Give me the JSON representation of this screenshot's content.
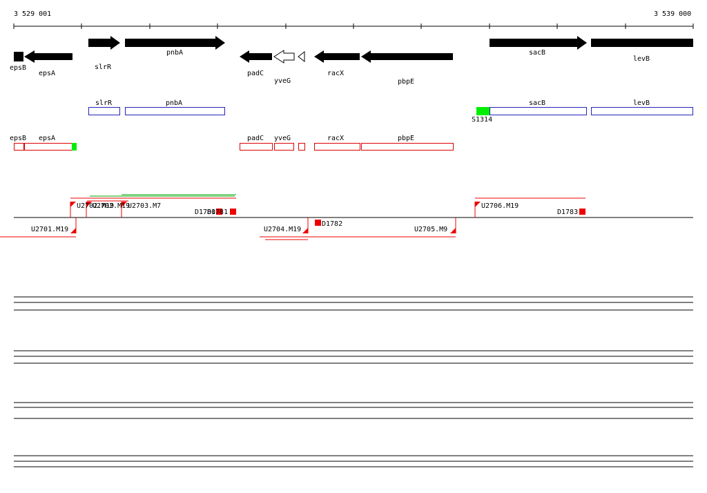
{
  "ruler": {
    "start_label": "3 529 001",
    "end_label": "3 539 000"
  },
  "genes_row1": [
    {
      "label": "epsB",
      "dir": "left",
      "style": "solid"
    },
    {
      "label": "epsA",
      "dir": "left",
      "style": "solid"
    },
    {
      "label": "slrR",
      "dir": "right",
      "style": "solid"
    },
    {
      "label": "pnbA",
      "dir": "right",
      "style": "solid"
    },
    {
      "label": "padC",
      "dir": "left",
      "style": "solid"
    },
    {
      "label": "yveG",
      "dir": "left",
      "style": "outline"
    },
    {
      "label": "",
      "dir": "left",
      "style": "outline"
    },
    {
      "label": "racX",
      "dir": "left",
      "style": "solid"
    },
    {
      "label": "pbpE",
      "dir": "left",
      "style": "solid"
    },
    {
      "label": "sacB",
      "dir": "right",
      "style": "solid"
    },
    {
      "label": "levB",
      "dir": "right",
      "style": "solid"
    }
  ],
  "genes_row2": [
    {
      "label": "slrR",
      "color": "#2222bb"
    },
    {
      "label": "pnbA",
      "color": "#2222bb"
    },
    {
      "label": "S1314",
      "color": "#00dd00"
    },
    {
      "label": "sacB",
      "color": "#2222bb"
    },
    {
      "label": "levB",
      "color": "#2222bb"
    }
  ],
  "genes_row3": [
    {
      "label": "epsB",
      "color": "#dd0000"
    },
    {
      "label": "epsA",
      "color": "#dd0000"
    },
    {
      "label": "padC",
      "color": "#dd0000"
    },
    {
      "label": "yveG",
      "color": "#dd0000"
    },
    {
      "label": "",
      "color": "#dd0000"
    },
    {
      "label": "racX",
      "color": "#dd0000"
    },
    {
      "label": "pbpE",
      "color": "#dd0000"
    }
  ],
  "features": [
    {
      "label": "U2702.M19"
    },
    {
      "label": "U2702.M19"
    },
    {
      "label": "U2703.M7"
    },
    {
      "label": "D1780"
    },
    {
      "label": "D1781"
    },
    {
      "label": "U2706.M19"
    },
    {
      "label": "D1783"
    },
    {
      "label": "U2701.M19"
    },
    {
      "label": "U2704.M19"
    },
    {
      "label": "D1782"
    },
    {
      "label": "U2705.M9"
    }
  ],
  "colors": {
    "feature_red": "#ee0000",
    "feature_green": "#00aa00",
    "gene_blue": "#2222bb",
    "gene_red": "#dd0000",
    "promoter_green": "#00ee00"
  }
}
